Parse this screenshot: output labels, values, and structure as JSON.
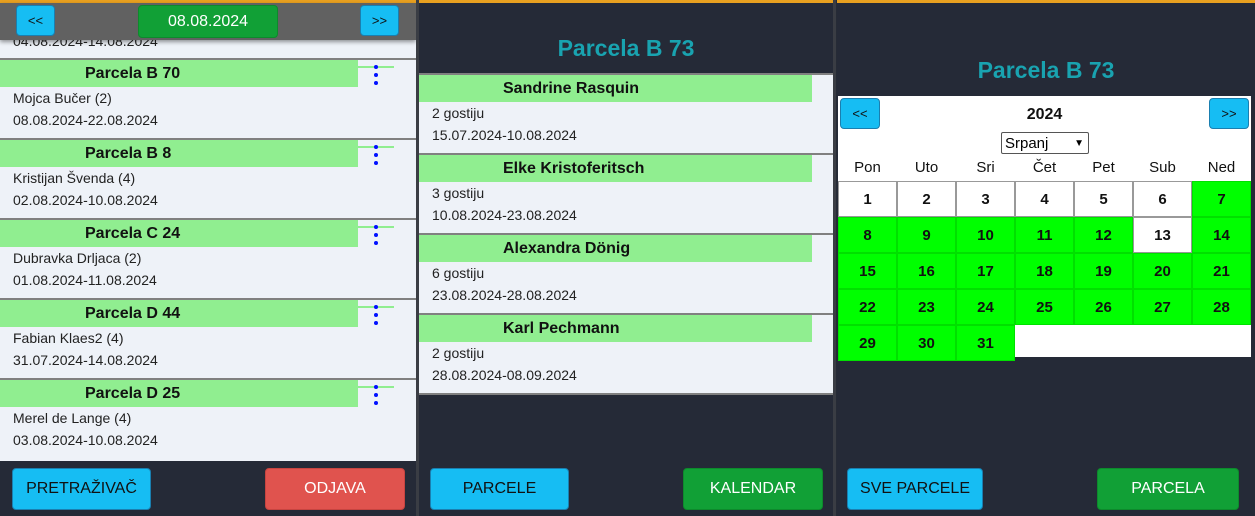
{
  "left": {
    "prev_label": "<<",
    "date": "08.08.2024",
    "next_label": ">>",
    "partial_item_dates": "04.08.2024-14.08.2024",
    "items": [
      {
        "title": "Parcela B 70",
        "guest": "Mojca Bučer (2)",
        "dates": "08.08.2024-22.08.2024"
      },
      {
        "title": "Parcela B 8",
        "guest": "Kristijan Švenda (4)",
        "dates": "02.08.2024-10.08.2024"
      },
      {
        "title": "Parcela C 24",
        "guest": "Dubravka Drljaca (2)",
        "dates": "01.08.2024-11.08.2024"
      },
      {
        "title": "Parcela D 44",
        "guest": "Fabian Klaes2 (4)",
        "dates": "31.07.2024-14.08.2024"
      },
      {
        "title": "Parcela D 25",
        "guest": "Merel de Lange (4)",
        "dates": "03.08.2024-10.08.2024"
      }
    ],
    "search_button": "PRETRAŽIVAČ",
    "logout_button": "ODJAVA"
  },
  "middle": {
    "title": "Parcela B 73",
    "items": [
      {
        "name": "Sandrine Rasquin",
        "guests": "2 gostiju",
        "dates": "15.07.2024-10.08.2024"
      },
      {
        "name": "Elke Kristoferitsch",
        "guests": "3 gostiju",
        "dates": "10.08.2024-23.08.2024"
      },
      {
        "name": "Alexandra Dönig",
        "guests": "6 gostiju",
        "dates": "23.08.2024-28.08.2024"
      },
      {
        "name": "Karl Pechmann",
        "guests": "2 gostiju",
        "dates": "28.08.2024-08.09.2024"
      }
    ],
    "parcels_button": "PARCELE",
    "calendar_button": "KALENDAR"
  },
  "right": {
    "title": "Parcela B 73",
    "prev_label": "<<",
    "next_label": ">>",
    "year": "2024",
    "month": "Srpanj",
    "weekdays": [
      "Pon",
      "Uto",
      "Sri",
      "Čet",
      "Pet",
      "Sub",
      "Ned"
    ],
    "days": 31,
    "occupied_days": [
      7,
      8,
      9,
      10,
      11,
      12,
      14,
      15,
      16,
      17,
      18,
      19,
      20,
      21,
      22,
      23,
      24,
      25,
      26,
      27,
      28,
      29,
      30,
      31
    ],
    "occupied_color": "#00ff00",
    "all_parcels_button": "SVE PARCELE",
    "parcel_button": "PARCELA"
  }
}
